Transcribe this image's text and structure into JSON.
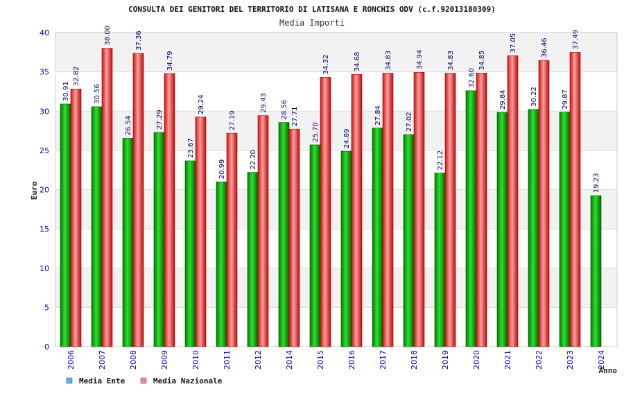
{
  "chart_data": {
    "type": "bar",
    "title": "CONSULTA DEI GENITORI DEL TERRITORIO DI LATISANA E RONCHIS ODV (c.f.92013180309)",
    "subtitle": "Media Importi",
    "xlabel": "Anno",
    "ylabel": "Euro",
    "ylim": [
      0,
      40
    ],
    "yticks": [
      0,
      5,
      10,
      15,
      20,
      25,
      30,
      35,
      40
    ],
    "grid": true,
    "legend_position": "bottom-left",
    "categories": [
      "2006",
      "2007",
      "2008",
      "2009",
      "2010",
      "2011",
      "2012",
      "2014",
      "2015",
      "2016",
      "2017",
      "2018",
      "2019",
      "2020",
      "2021",
      "2022",
      "2023",
      "2024"
    ],
    "series": [
      {
        "name": "Media Ente",
        "color": "#00aa00",
        "legend_color": "#66aaee",
        "values": [
          30.91,
          30.56,
          26.54,
          27.29,
          23.67,
          20.99,
          22.2,
          28.56,
          25.7,
          24.89,
          27.84,
          27.02,
          22.12,
          32.6,
          29.84,
          30.22,
          29.87,
          19.23
        ],
        "labels": [
          "30.91",
          "30.56",
          "26.54",
          "27.29",
          "23.67",
          "20.99",
          "22.20",
          "28.56",
          "25.70",
          "24.89",
          "27.84",
          "27.02",
          "22.12",
          "32.60",
          "29.84",
          "30.22",
          "29.87",
          "19.23"
        ]
      },
      {
        "name": "Media Nazionale",
        "color": "#dd1111",
        "legend_color": "#dd88bb",
        "values": [
          32.82,
          38.0,
          37.36,
          34.79,
          29.24,
          27.19,
          29.43,
          27.71,
          34.32,
          34.68,
          34.83,
          34.94,
          34.83,
          34.85,
          37.05,
          36.46,
          37.49,
          null
        ],
        "labels": [
          "32.82",
          "38.00",
          "37.36",
          "34.79",
          "29.24",
          "27.19",
          "29.43",
          "27.71",
          "34.32",
          "34.68",
          "34.83",
          "34.94",
          "34.83",
          "34.85",
          "37.05",
          "36.46",
          "37.49",
          null
        ]
      }
    ]
  }
}
